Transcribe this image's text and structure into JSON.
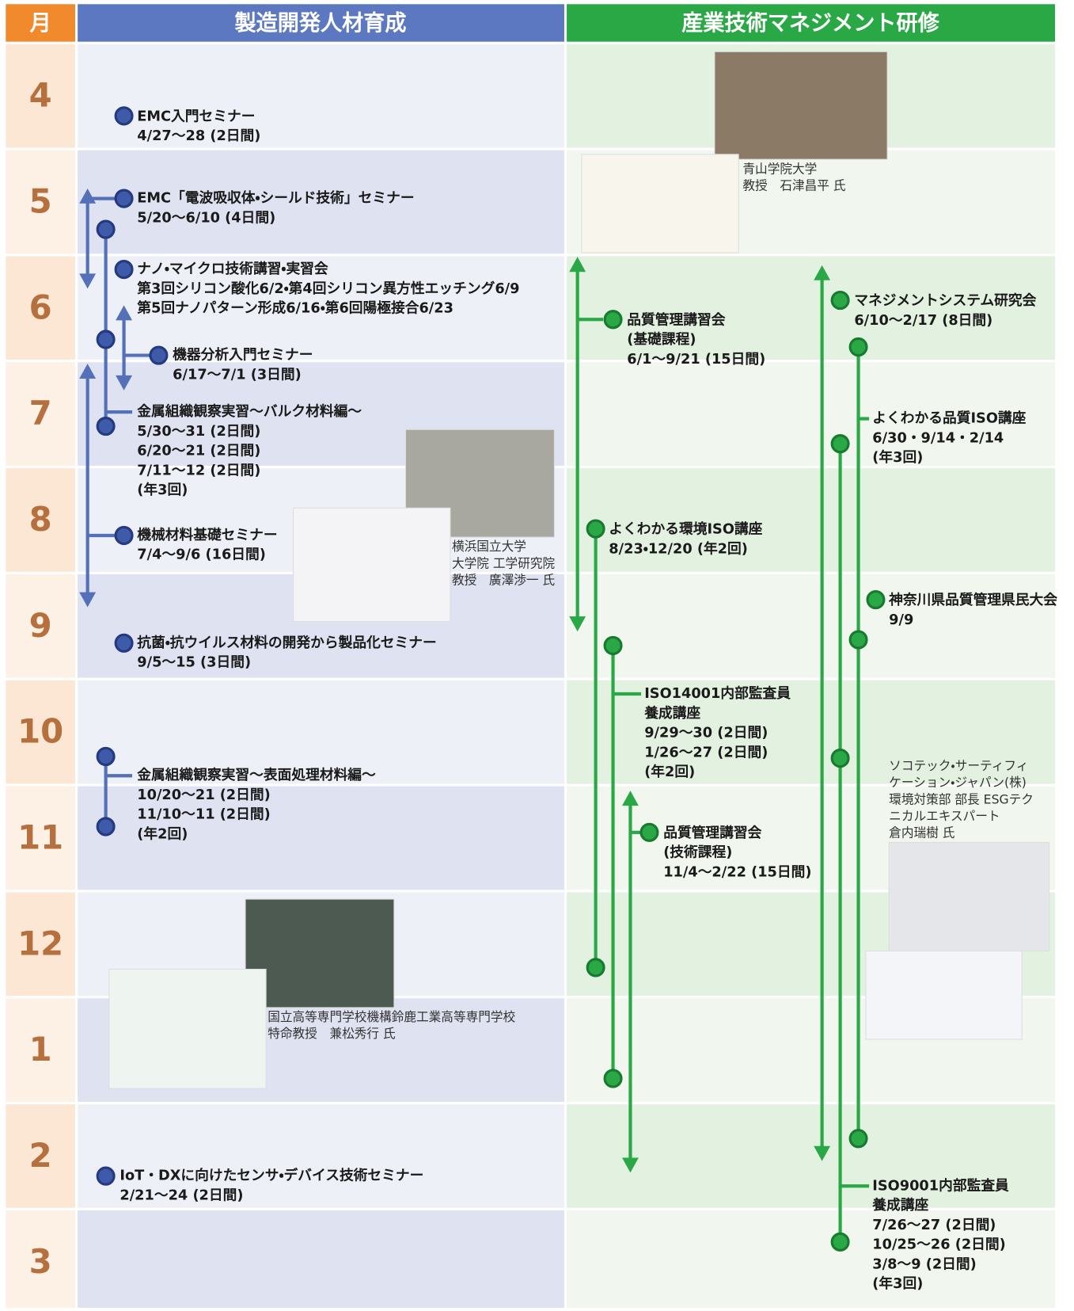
{
  "header": {
    "month": "月",
    "left": "製造開発人材育成",
    "right": "産業技術マネジメント研修"
  },
  "months": [
    "4",
    "5",
    "6",
    "7",
    "8",
    "9",
    "10",
    "11",
    "12",
    "1",
    "2",
    "3"
  ],
  "left_events": [
    {
      "lines": [
        "EMC入門セミナー",
        "4/27～28 (2日間)"
      ]
    },
    {
      "lines": [
        "EMC「電波吸収体・シールド技術」セミナー",
        "5/20～6/10 (4日間)"
      ]
    },
    {
      "lines": [
        "ナノ・マイクロ技術講習・実習会",
        "第3回シリコン酸化6/2・第4回シリコン異方性エッチング6/9",
        "第5回ナノパターン形成6/16・第6回陽極接合6/23"
      ]
    },
    {
      "lines": [
        "機器分析入門セミナー",
        "6/17～7/1 (3日間)"
      ]
    },
    {
      "lines": [
        "金属組織観察実習～バルク材料編～",
        "5/30～31 (2日間)",
        "6/20～21 (2日間)",
        "7/11～12 (2日間)",
        "(年3回)"
      ]
    },
    {
      "lines": [
        "機械材料基礎セミナー",
        "7/4～9/6 (16日間)"
      ]
    },
    {
      "lines": [
        "抗菌・抗ウイルス材料の開発から製品化セミナー",
        "9/5～15 (3日間)"
      ]
    },
    {
      "lines": [
        "金属組織観察実習～表面処理材料編～",
        "10/20～21 (2日間)",
        "11/10～11 (2日間)",
        "(年2回)"
      ]
    },
    {
      "lines": [
        "IoT・DXに向けたセンサ・デバイス技術セミナー",
        "2/21～24 (2日間)"
      ]
    }
  ],
  "right_events": [
    {
      "lines": [
        "品質管理講習会",
        "(基礎課程)",
        "6/1～9/21 (15日間)"
      ]
    },
    {
      "lines": [
        "マネジメントシステム研究会",
        "6/10～2/17 (8日間)"
      ]
    },
    {
      "lines": [
        "よくわかる品質ISO講座",
        "6/30・9/14・2/14",
        "(年3回)"
      ]
    },
    {
      "lines": [
        "よくわかる環境ISO講座",
        "8/23・12/20 (年2回)"
      ]
    },
    {
      "lines": [
        "神奈川県品質管理県民大会",
        "9/9"
      ]
    },
    {
      "lines": [
        "ISO14001内部監査員",
        "養成講座",
        "9/29～30 (2日間)",
        "1/26～27 (2日間)",
        "(年2回)"
      ]
    },
    {
      "lines": [
        "品質管理講習会",
        "(技術課程)",
        "11/4～2/22 (15日間)"
      ]
    },
    {
      "lines": [
        "ISO9001内部監査員",
        "養成講座",
        "7/26～27 (2日間)",
        "10/25～26 (2日間)",
        "3/8～9 (2日間)",
        "(年3回)"
      ]
    }
  ],
  "captions": [
    {
      "lines": [
        "青山学院大学",
        "教授　石津昌平 氏"
      ]
    },
    {
      "lines": [
        "横浜国立大学",
        "大学院 工学研究院",
        "教授　廣澤渉一 氏"
      ]
    },
    {
      "lines": [
        "国立高等専門学校機構鈴鹿工業高等専門学校",
        "特命教授　兼松秀行 氏"
      ]
    },
    {
      "lines": [
        "ソコテック・サーティフィ",
        "ケーション・ジャパン(株)",
        "環境対策部 部長 ESGテク",
        "ニカルエキスパート",
        "倉内瑞樹 氏"
      ]
    }
  ]
}
